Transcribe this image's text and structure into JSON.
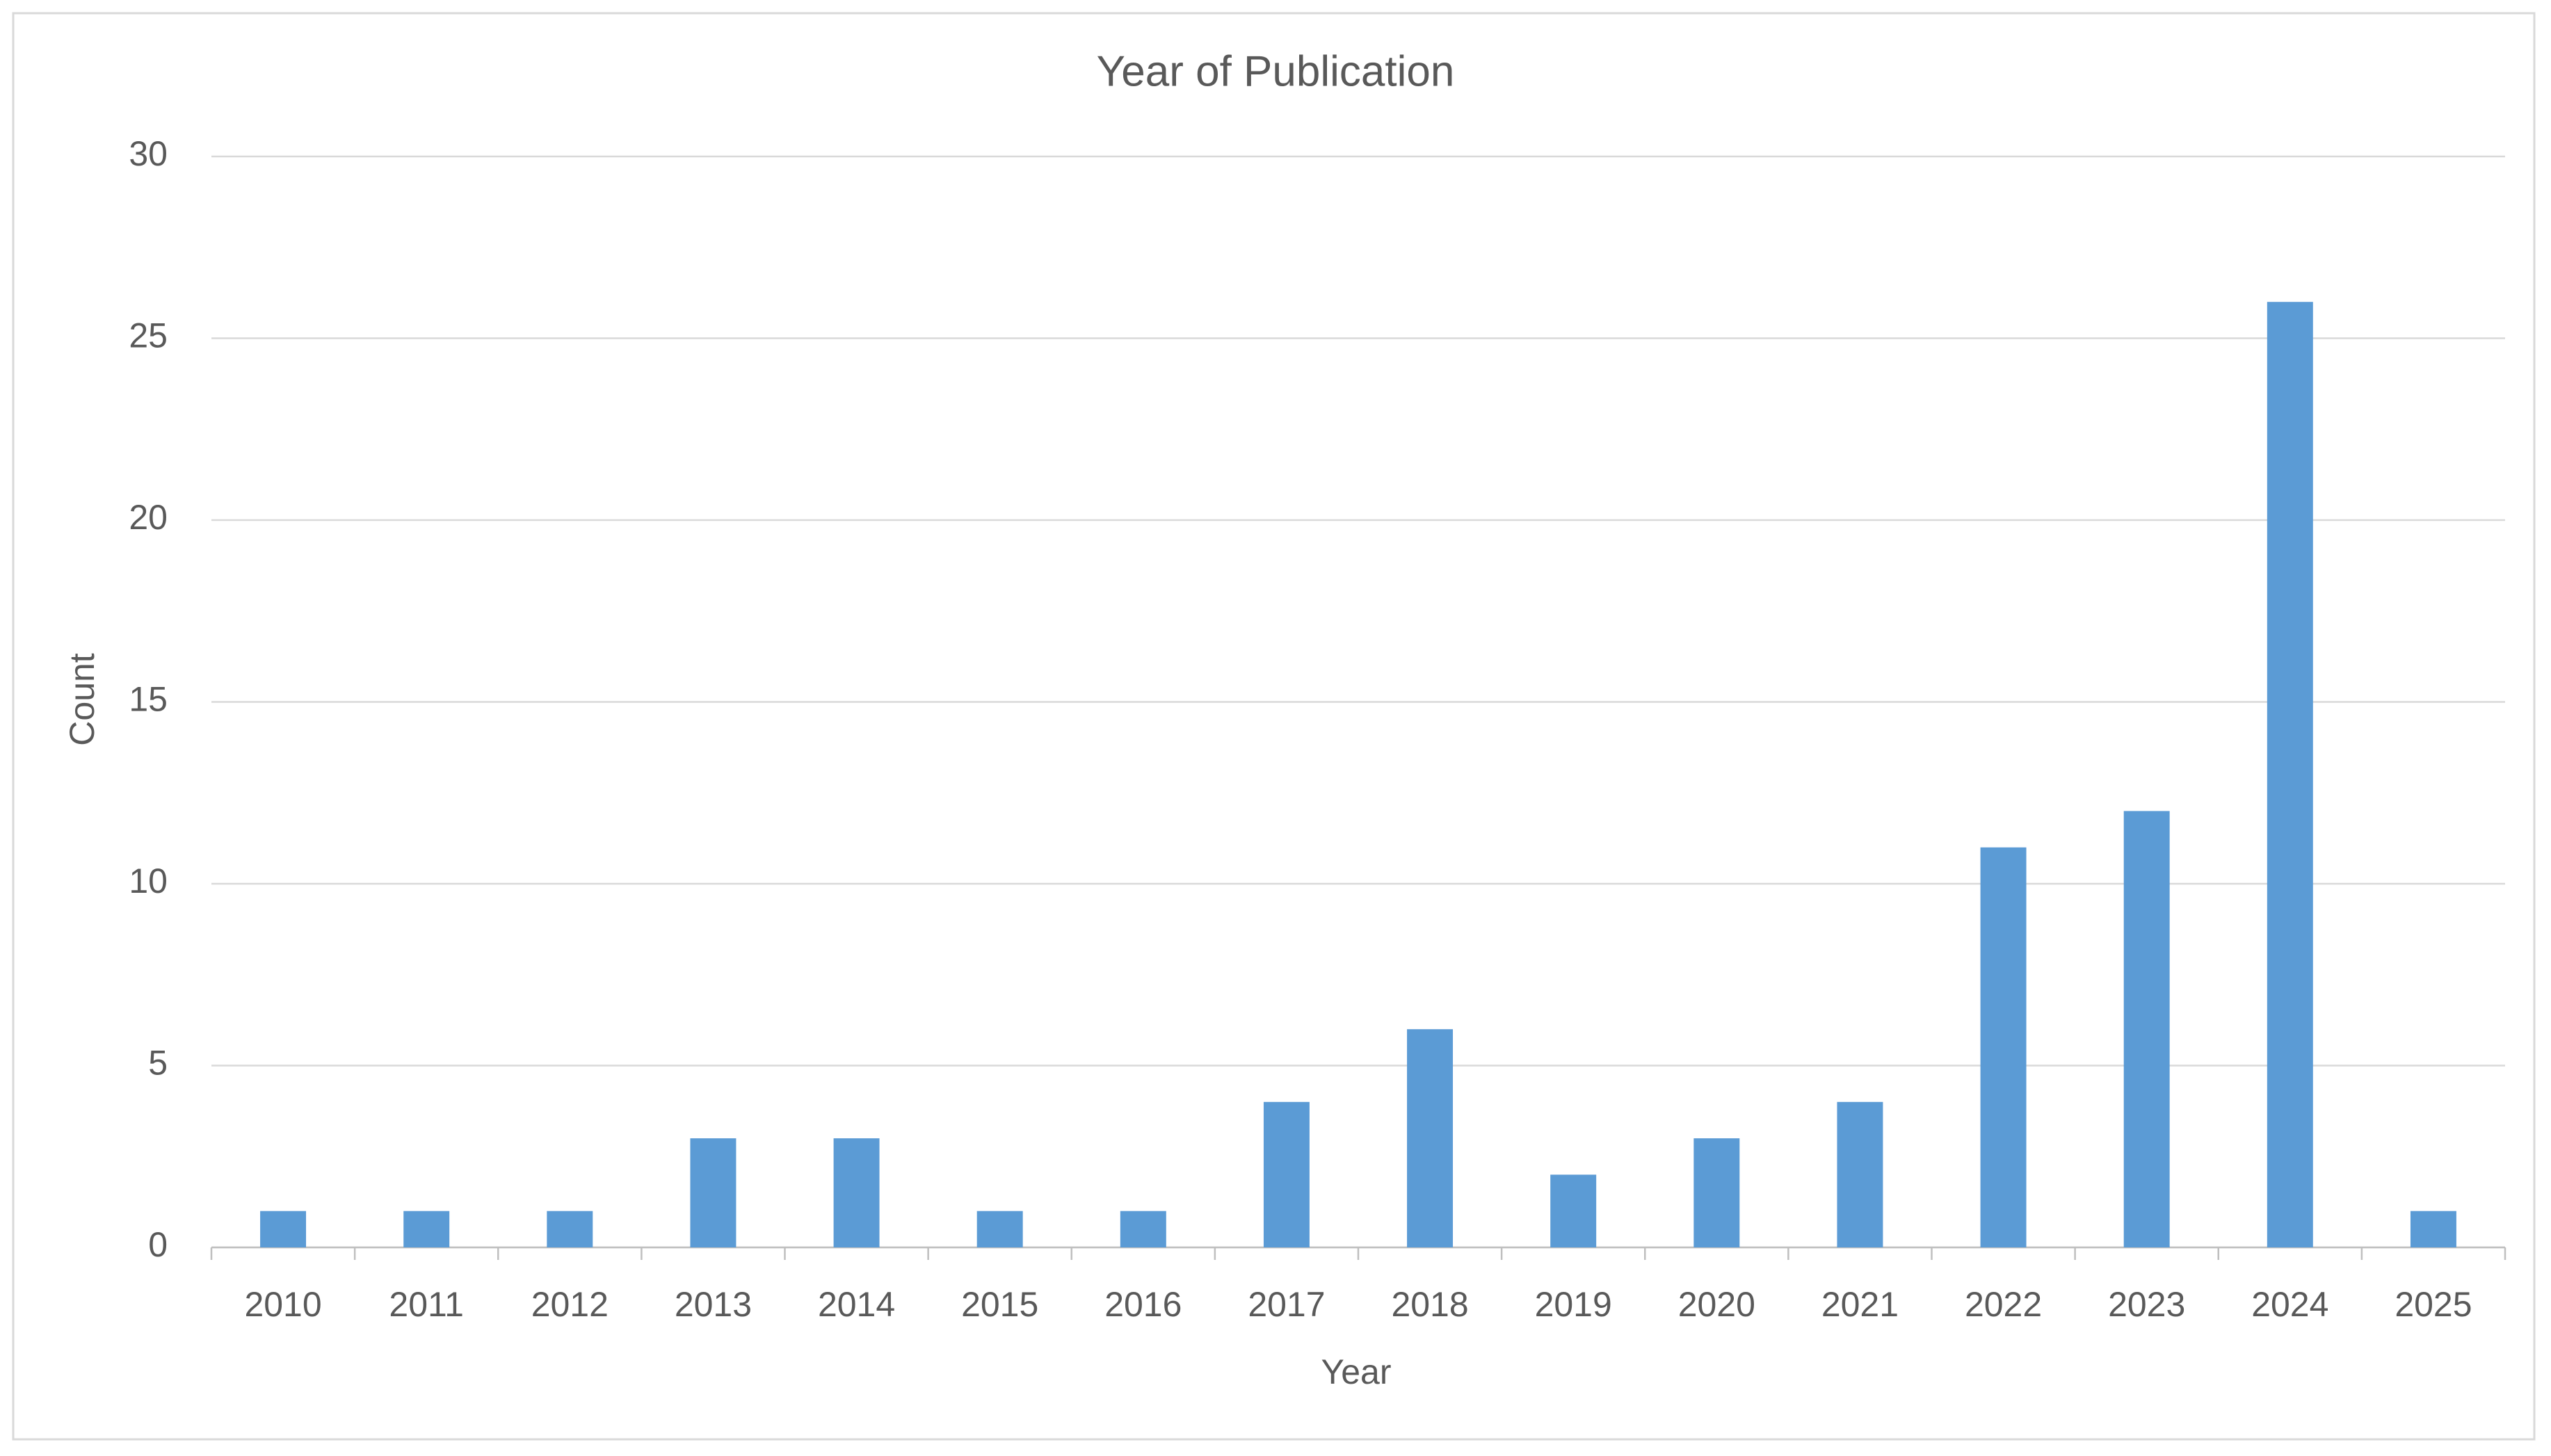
{
  "chart_data": {
    "type": "bar",
    "title": "Year of Publication",
    "x_label": "Year",
    "y_label": "Count",
    "categories": [
      "2010",
      "2011",
      "2012",
      "2013",
      "2014",
      "2015",
      "2016",
      "2017",
      "2018",
      "2019",
      "2020",
      "2021",
      "2022",
      "2023",
      "2024",
      "2025"
    ],
    "values": [
      1,
      1,
      1,
      3,
      3,
      1,
      1,
      4,
      6,
      2,
      3,
      4,
      11,
      12,
      26,
      1
    ],
    "color": "#5b9bd5",
    "ylim": [
      0,
      30
    ],
    "yticks": [
      0,
      5,
      10,
      15,
      20,
      25,
      30
    ],
    "grid": true
  }
}
